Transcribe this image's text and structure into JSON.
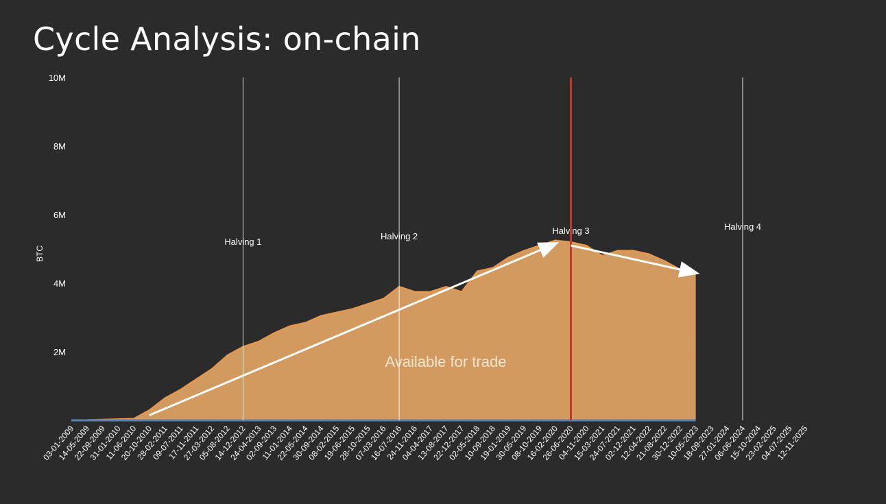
{
  "slide": {
    "title": "Cycle Analysis: on-chain"
  },
  "chart_data": {
    "type": "area",
    "title": "",
    "xlabel": "",
    "ylabel": "BTC",
    "ylim": [
      0,
      10000000
    ],
    "yticks": [
      {
        "value": 2000000,
        "label": "2M"
      },
      {
        "value": 4000000,
        "label": "4M"
      },
      {
        "value": 6000000,
        "label": "6M"
      },
      {
        "value": 8000000,
        "label": "8M"
      },
      {
        "value": 10000000,
        "label": "10M"
      }
    ],
    "x_tick_labels": [
      "03-01-2009",
      "14-05-2009",
      "22-09-2009",
      "31-01-2010",
      "11-06-2010",
      "20-10-2010",
      "28-02-2011",
      "09-07-2011",
      "17-11-2011",
      "27-03-2012",
      "05-08-2012",
      "14-12-2012",
      "24-04-2013",
      "02-09-2013",
      "11-01-2014",
      "22-05-2014",
      "30-09-2014",
      "08-02-2015",
      "19-06-2015",
      "28-10-2015",
      "07-03-2016",
      "16-07-2016",
      "24-11-2016",
      "04-04-2017",
      "13-08-2017",
      "22-12-2017",
      "02-05-2018",
      "10-09-2018",
      "19-01-2019",
      "30-05-2019",
      "08-10-2019",
      "16-02-2020",
      "26-06-2020",
      "04-11-2020",
      "15-03-2021",
      "24-07-2021",
      "02-12-2021",
      "12-04-2022",
      "21-08-2022",
      "30-12-2022",
      "10-05-2023",
      "18-09-2023",
      "27-01-2024",
      "06-06-2024",
      "15-10-2024",
      "23-02-2025",
      "04-07-2025",
      "12-11-2025"
    ],
    "series": [
      {
        "name": "",
        "area_label": "Available for trade",
        "color": "#d29a5f",
        "edge_color": "#e8984f",
        "points": [
          {
            "x": "03-01-2009",
            "y": 0
          },
          {
            "x": "11-06-2010",
            "y": 50000
          },
          {
            "x": "20-10-2010",
            "y": 300000
          },
          {
            "x": "28-02-2011",
            "y": 650000
          },
          {
            "x": "09-07-2011",
            "y": 900000
          },
          {
            "x": "17-11-2011",
            "y": 1200000
          },
          {
            "x": "27-03-2012",
            "y": 1500000
          },
          {
            "x": "05-08-2012",
            "y": 1900000
          },
          {
            "x": "14-12-2012",
            "y": 2150000
          },
          {
            "x": "24-04-2013",
            "y": 2300000
          },
          {
            "x": "02-09-2013",
            "y": 2550000
          },
          {
            "x": "11-01-2014",
            "y": 2750000
          },
          {
            "x": "22-05-2014",
            "y": 2850000
          },
          {
            "x": "30-09-2014",
            "y": 3050000
          },
          {
            "x": "08-02-2015",
            "y": 3150000
          },
          {
            "x": "19-06-2015",
            "y": 3250000
          },
          {
            "x": "28-10-2015",
            "y": 3400000
          },
          {
            "x": "07-03-2016",
            "y": 3550000
          },
          {
            "x": "16-07-2016",
            "y": 3900000
          },
          {
            "x": "24-11-2016",
            "y": 3750000
          },
          {
            "x": "04-04-2017",
            "y": 3750000
          },
          {
            "x": "13-08-2017",
            "y": 3900000
          },
          {
            "x": "22-12-2017",
            "y": 3750000
          },
          {
            "x": "02-05-2018",
            "y": 4350000
          },
          {
            "x": "10-09-2018",
            "y": 4450000
          },
          {
            "x": "19-01-2019",
            "y": 4750000
          },
          {
            "x": "30-05-2019",
            "y": 4950000
          },
          {
            "x": "08-10-2019",
            "y": 5100000
          },
          {
            "x": "16-02-2020",
            "y": 5250000
          },
          {
            "x": "26-06-2020",
            "y": 5200000
          },
          {
            "x": "04-11-2020",
            "y": 5100000
          },
          {
            "x": "15-03-2021",
            "y": 4800000
          },
          {
            "x": "24-07-2021",
            "y": 4950000
          },
          {
            "x": "02-12-2021",
            "y": 4950000
          },
          {
            "x": "12-04-2022",
            "y": 4850000
          },
          {
            "x": "21-08-2022",
            "y": 4650000
          },
          {
            "x": "30-12-2022",
            "y": 4400000
          },
          {
            "x": "10-05-2023",
            "y": 4300000
          }
        ]
      }
    ],
    "trend_lines": [
      {
        "color": "#ffffff",
        "from": {
          "x": "20-10-2010",
          "y": 150000
        },
        "to": {
          "x": "16-02-2020",
          "y": 5150000
        }
      },
      {
        "color": "#ffffff",
        "from": {
          "x": "26-06-2020",
          "y": 5100000
        },
        "to": {
          "x": "10-05-2023",
          "y": 4300000
        }
      }
    ],
    "vertical_markers": [
      {
        "label": "Halving 1",
        "x": "14-12-2012",
        "color": "#ffffff"
      },
      {
        "label": "Halving 2",
        "x": "16-07-2016",
        "color": "#ffffff"
      },
      {
        "label": "Halving 3",
        "x": "26-06-2020",
        "color": "#ffffff"
      },
      {
        "label": "",
        "x": "26-06-2020",
        "color": "#c0392b"
      },
      {
        "label": "Halving 4",
        "x": "06-06-2024",
        "color": "#ffffff"
      }
    ],
    "baseline_color": "#5a7fb0",
    "grid": false,
    "legend": "none"
  }
}
